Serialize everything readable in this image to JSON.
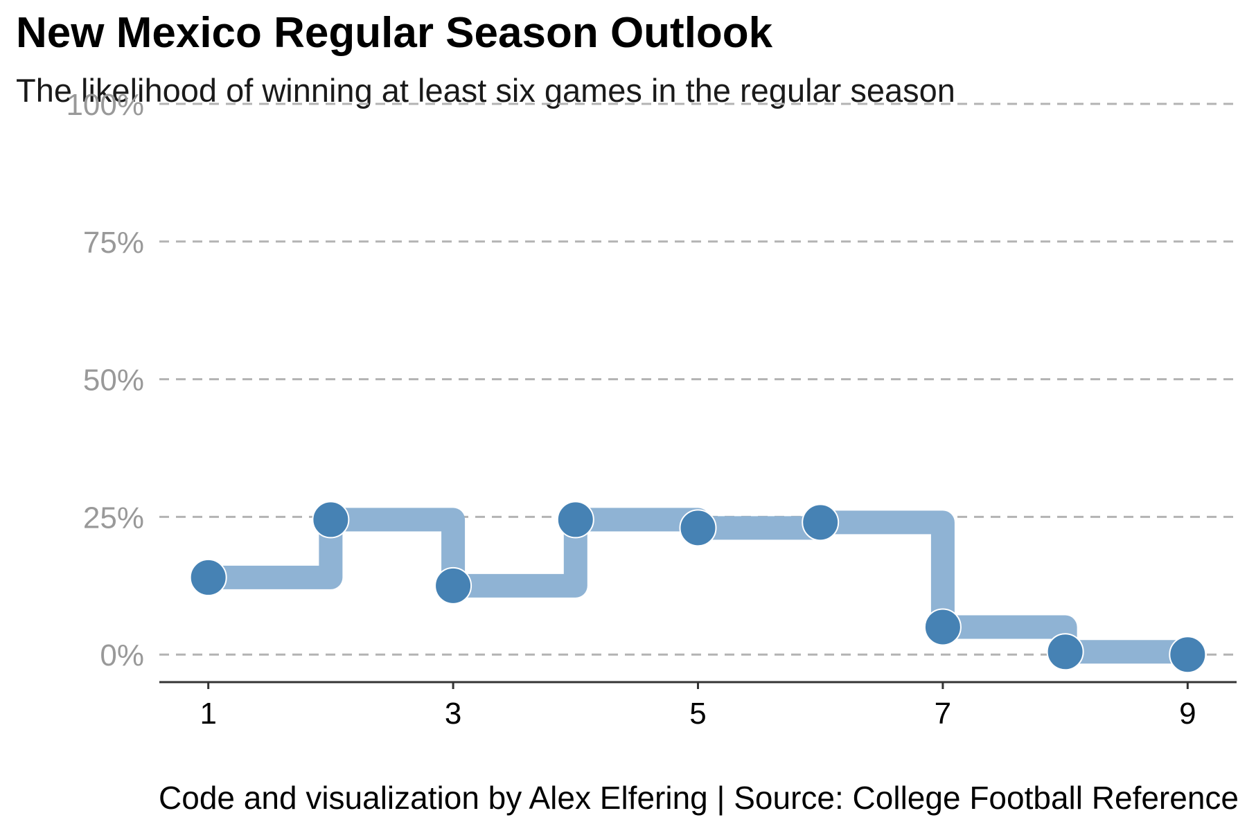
{
  "colors": {
    "step_line": "#8fb3d4",
    "point": "#4682b4",
    "point_outline": "#ffffff",
    "grid": "#b3b3b3",
    "y_tick_text": "#999999",
    "x_tick_text": "#000000",
    "axis_line": "#333333"
  },
  "chart_data": {
    "type": "line",
    "style": "step",
    "title": "New Mexico Regular Season Outlook",
    "subtitle": "The likelihood of winning at least six games in the regular season",
    "caption": "Code and visualization by Alex Elfering | Source: College Football Reference",
    "xlabel": "",
    "ylabel": "",
    "x": [
      1,
      2,
      3,
      4,
      5,
      6,
      7,
      8,
      9
    ],
    "y": [
      14,
      24.5,
      12.5,
      24.5,
      23,
      24,
      5,
      0.5,
      0
    ],
    "xlim": [
      0.6,
      9.4
    ],
    "ylim": [
      -5,
      100
    ],
    "x_ticks": [
      1,
      3,
      5,
      7,
      9
    ],
    "x_tick_labels": [
      "1",
      "3",
      "5",
      "7",
      "9"
    ],
    "y_ticks": [
      0,
      25,
      50,
      75,
      100
    ],
    "y_tick_labels": [
      "0%",
      "25%",
      "50%",
      "75%",
      "100%"
    ],
    "grid": "horizontal dashed",
    "legend": "none"
  }
}
